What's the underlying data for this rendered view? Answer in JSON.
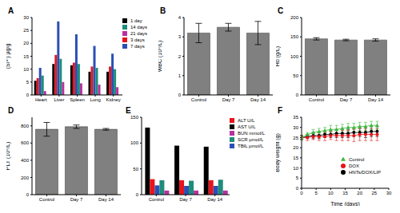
{
  "chart_data": [
    {
      "type": "bar",
      "title": "A",
      "y_label": "(Si⁴⁺) μg/g",
      "categories": [
        "Heart",
        "Liver",
        "Spleen",
        "Lung",
        "Kidney"
      ],
      "series": [
        {
          "name": "1 day",
          "color": "#000000",
          "values": [
            5.5,
            12,
            11.5,
            9,
            9
          ]
        },
        {
          "name": "3 days",
          "color": "#e8141b",
          "values": [
            6.5,
            15.5,
            12.5,
            11,
            11
          ]
        },
        {
          "name": "7 days",
          "color": "#2b4fb5",
          "values": [
            10.5,
            28.5,
            23.5,
            19,
            16
          ]
        },
        {
          "name": "14 days",
          "color": "#1f8c7a",
          "values": [
            7.5,
            14,
            12,
            10.5,
            10
          ]
        },
        {
          "name": "21 days",
          "color": "#b5329e",
          "values": [
            1.5,
            5,
            4.5,
            4,
            3
          ]
        }
      ],
      "ylim": [
        0,
        30
      ],
      "yticks": [
        0,
        5,
        10,
        15,
        20,
        25,
        30
      ],
      "legend": "right"
    },
    {
      "type": "bar",
      "title": "B",
      "y_label": "WBC (10⁹/L)",
      "categories": [
        "Control",
        "Day 7",
        "Day 14"
      ],
      "values": [
        3.2,
        3.5,
        3.2
      ],
      "errors": [
        0.5,
        0.2,
        0.6
      ],
      "color": "#808080",
      "ylim": [
        0,
        4
      ],
      "yticks": [
        0,
        1,
        2,
        3,
        4
      ]
    },
    {
      "type": "bar",
      "title": "C",
      "y_label": "Hb (g/L)",
      "categories": [
        "Control",
        "Day 7",
        "Day 14"
      ],
      "values": [
        145,
        142,
        142
      ],
      "errors": [
        3,
        2,
        3
      ],
      "color": "#808080",
      "ylim": [
        0,
        200
      ],
      "yticks": [
        0,
        50,
        100,
        150,
        200
      ]
    },
    {
      "type": "bar",
      "title": "D",
      "y_label": "PLT (10⁹/L)",
      "categories": [
        "Control",
        "Day 7",
        "Day 14"
      ],
      "values": [
        760,
        790,
        760
      ],
      "errors": [
        80,
        20,
        10
      ],
      "color": "#808080",
      "ylim": [
        0,
        900
      ],
      "yticks": [
        0,
        200,
        400,
        600,
        800
      ]
    },
    {
      "type": "bar",
      "title": "E",
      "categories": [
        "Control",
        "Day 7",
        "Day 14"
      ],
      "series": [
        {
          "name": "AST U/L",
          "color": "#000000",
          "values": [
            130,
            95,
            93
          ]
        },
        {
          "name": "ALT U/L",
          "color": "#e8141b",
          "values": [
            30,
            28,
            28
          ]
        },
        {
          "name": "TBIL μmol/L",
          "color": "#2b4fb5",
          "values": [
            18,
            17,
            17
          ]
        },
        {
          "name": "SCR μmol/L",
          "color": "#1f8c7a",
          "values": [
            28,
            27,
            29
          ]
        },
        {
          "name": "BUN mmol/L",
          "color": "#b5329e",
          "values": [
            8,
            8,
            8
          ]
        }
      ],
      "ylim": [
        0,
        150
      ],
      "yticks": [
        0,
        50,
        100,
        150
      ],
      "legend": "right"
    },
    {
      "type": "line",
      "title": "F",
      "x_label": "Time (days)",
      "y_label": "Body weight (g)",
      "x": [
        0,
        2,
        4,
        6,
        8,
        10,
        12,
        14,
        16,
        18,
        20,
        22,
        24,
        26
      ],
      "series": [
        {
          "name": "HNTs/DOX/LIP",
          "color": "#000000",
          "marker": "circle",
          "values": [
            25,
            25.5,
            26,
            26,
            26.5,
            26.5,
            27,
            27,
            27,
            27.5,
            27.5,
            27.5,
            28,
            28
          ],
          "errors": [
            1,
            1,
            1.5,
            1.5,
            1.5,
            1.5,
            2,
            2,
            2,
            2,
            2,
            2.5,
            2.5,
            2.5
          ]
        },
        {
          "name": "DOX",
          "color": "#e8141b",
          "marker": "circle",
          "values": [
            25,
            25,
            25.5,
            25.5,
            25.5,
            26,
            26,
            26,
            26,
            26,
            26.5,
            26.5,
            26.5,
            26.5
          ],
          "errors": [
            1,
            1.5,
            1.5,
            2,
            2,
            2,
            2.5,
            2.5,
            2.5,
            3,
            3,
            3,
            3,
            3
          ]
        },
        {
          "name": "Control",
          "color": "#3cb83c",
          "marker": "triangle",
          "values": [
            25,
            26.5,
            27.5,
            28,
            28.5,
            29,
            29,
            29.5,
            30,
            30,
            30.5,
            30.5,
            31,
            31
          ],
          "errors": [
            1,
            1,
            1.5,
            1.5,
            1.5,
            2,
            2,
            2,
            2,
            2,
            2,
            2,
            2,
            2
          ]
        }
      ],
      "xlim": [
        0,
        30
      ],
      "xticks": [
        0,
        5,
        10,
        15,
        20,
        25,
        30
      ],
      "ylim": [
        0,
        35
      ],
      "yticks": [
        0,
        5,
        10,
        15,
        20,
        25,
        30,
        35
      ],
      "legend": "lower right"
    }
  ]
}
